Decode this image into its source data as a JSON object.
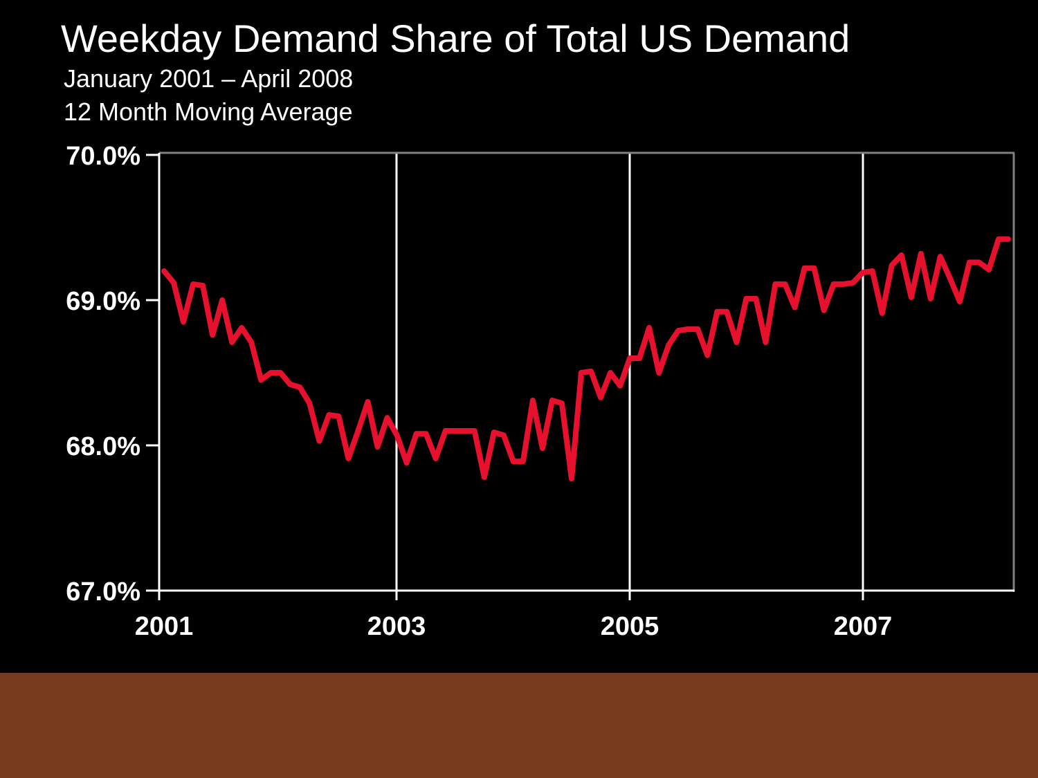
{
  "page": {
    "background_color": "#000000",
    "footer_color": "#7a3c1e"
  },
  "header": {
    "title": "Weekday Demand Share of Total US Demand",
    "subtitle_range": "January 2001 – April 2008",
    "subtitle_note": "12 Month Moving Average"
  },
  "chart_data": {
    "type": "line",
    "title": "Weekday Demand Share of Total US Demand",
    "subtitle": "January 2001 – April 2008",
    "note": "12 Month Moving Average",
    "line_color": "#e8112d",
    "ylim": [
      67.0,
      70.0
    ],
    "y_ticks": [
      "70.0%",
      "69.0%",
      "68.0%",
      "67.0%"
    ],
    "x_ticks": [
      "2001",
      "2003",
      "2005",
      "2007"
    ],
    "grid": "vertical white gridlines at 2003, 2005, 2007; left/bottom axes white; top/right plot border gray",
    "legend": "none",
    "x": [
      "2001-01",
      "2001-02",
      "2001-03",
      "2001-04",
      "2001-05",
      "2001-06",
      "2001-07",
      "2001-08",
      "2001-09",
      "2001-10",
      "2001-11",
      "2001-12",
      "2002-01",
      "2002-02",
      "2002-03",
      "2002-04",
      "2002-05",
      "2002-06",
      "2002-07",
      "2002-08",
      "2002-09",
      "2002-10",
      "2002-11",
      "2002-12",
      "2003-01",
      "2003-02",
      "2003-03",
      "2003-04",
      "2003-05",
      "2003-06",
      "2003-07",
      "2003-08",
      "2003-09",
      "2003-10",
      "2003-11",
      "2003-12",
      "2004-01",
      "2004-02",
      "2004-03",
      "2004-04",
      "2004-05",
      "2004-06",
      "2004-07",
      "2004-08",
      "2004-09",
      "2004-10",
      "2004-11",
      "2004-12",
      "2005-01",
      "2005-02",
      "2005-03",
      "2005-04",
      "2005-05",
      "2005-06",
      "2005-07",
      "2005-08",
      "2005-09",
      "2005-10",
      "2005-11",
      "2005-12",
      "2006-01",
      "2006-02",
      "2006-03",
      "2006-04",
      "2006-05",
      "2006-06",
      "2006-07",
      "2006-08",
      "2006-09",
      "2006-10",
      "2006-11",
      "2006-12",
      "2007-01",
      "2007-02",
      "2007-03",
      "2007-04",
      "2007-05",
      "2007-06",
      "2007-07",
      "2007-08",
      "2007-09",
      "2007-10",
      "2007-11",
      "2007-12",
      "2008-01",
      "2008-02",
      "2008-03",
      "2008-04"
    ],
    "series": [
      {
        "name": "Weekday demand share of total US demand (12-month moving average, %)",
        "values": [
          69.2,
          69.12,
          68.85,
          69.11,
          69.1,
          68.76,
          69.0,
          68.71,
          68.81,
          68.71,
          68.45,
          68.5,
          68.5,
          68.42,
          68.4,
          68.29,
          68.03,
          68.21,
          68.2,
          67.91,
          68.1,
          68.3,
          67.99,
          68.19,
          68.07,
          67.88,
          68.08,
          68.08,
          67.91,
          68.1,
          68.1,
          68.1,
          68.1,
          67.78,
          68.09,
          68.07,
          67.89,
          67.89,
          68.31,
          67.98,
          68.31,
          68.29,
          67.77,
          68.5,
          68.51,
          68.33,
          68.5,
          68.41,
          68.6,
          68.6,
          68.81,
          68.5,
          68.69,
          68.79,
          68.8,
          68.8,
          68.62,
          68.92,
          68.92,
          68.71,
          69.01,
          69.01,
          68.71,
          69.11,
          69.11,
          68.95,
          69.22,
          69.22,
          68.93,
          69.11,
          69.11,
          69.12,
          69.19,
          69.2,
          68.91,
          69.24,
          69.31,
          69.02,
          69.32,
          69.01,
          69.3,
          69.15,
          68.99,
          69.26,
          69.26,
          69.21,
          69.42,
          69.42
        ]
      }
    ]
  }
}
